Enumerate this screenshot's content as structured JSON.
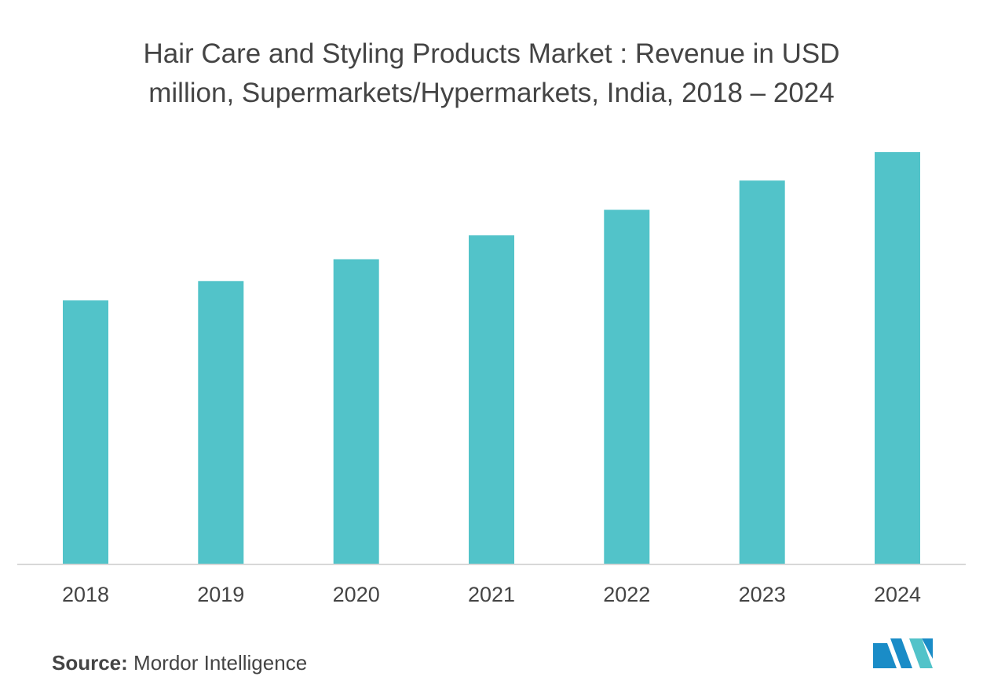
{
  "chart_data": {
    "type": "bar",
    "title_lines": [
      "Hair Care and Styling Products Market : Revenue in USD",
      "million, Supermarkets/Hypermarkets, India, 2018 – 2024"
    ],
    "categories": [
      "2018",
      "2019",
      "2020",
      "2021",
      "2022",
      "2023",
      "2024"
    ],
    "values": [
      64,
      68.7,
      74,
      79.8,
      86,
      93.1,
      100
    ],
    "ylim": [
      0,
      100
    ],
    "grid": false,
    "bar_color": "#52c3c9",
    "axis_color": "#d0d0d0"
  },
  "footer": {
    "source_label": "Source:",
    "source_text": " Mordor Intelligence"
  },
  "logo": {
    "icon": "mordor-intelligence-logo",
    "colors": [
      "#1a8cc7",
      "#52c3c9"
    ]
  }
}
